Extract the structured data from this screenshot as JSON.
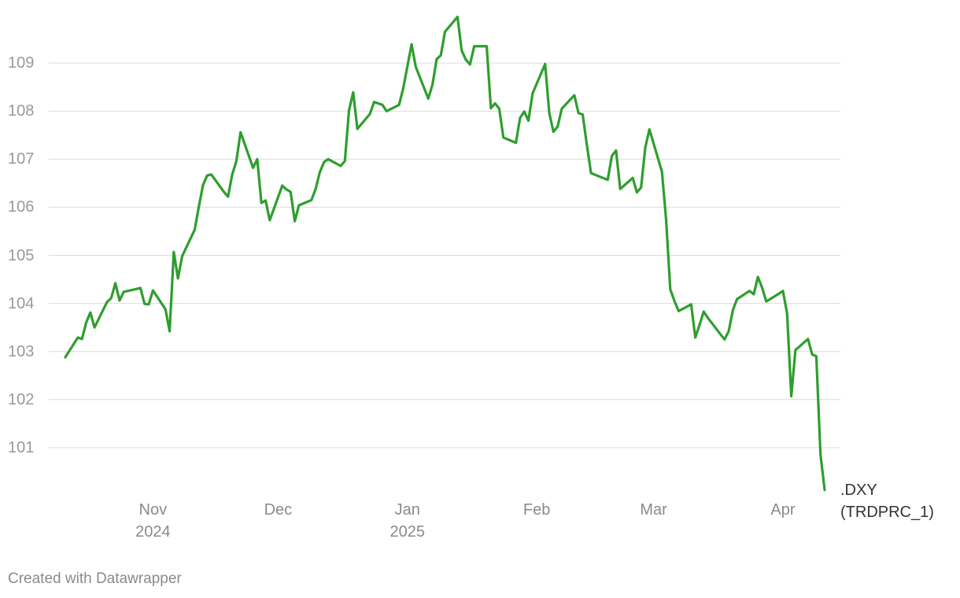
{
  "chart_data": {
    "type": "line",
    "footer": "Created with Datawrapper",
    "ylim": [
      100,
      110
    ],
    "yticks": [
      101,
      102,
      103,
      104,
      105,
      106,
      107,
      108,
      109
    ],
    "grid": true,
    "xlim": [
      "2024-10-11",
      "2025-04-11"
    ],
    "xticks": [
      {
        "value": "2024-11",
        "label": "Nov\n2024"
      },
      {
        "value": "2024-12",
        "label": "Dec"
      },
      {
        "value": "2025-01",
        "label": "Jan\n2025"
      },
      {
        "value": "2025-02",
        "label": "Feb"
      },
      {
        "value": "2025-03",
        "label": "Mar"
      },
      {
        "value": "2025-04",
        "label": "Apr"
      }
    ],
    "x": [
      "2024-10-11",
      "2024-10-14",
      "2024-10-15",
      "2024-10-16",
      "2024-10-17",
      "2024-10-18",
      "2024-10-21",
      "2024-10-22",
      "2024-10-23",
      "2024-10-24",
      "2024-10-25",
      "2024-10-28",
      "2024-10-29",
      "2024-10-30",
      "2024-10-31",
      "2024-11-01",
      "2024-11-04",
      "2024-11-05",
      "2024-11-06",
      "2024-11-07",
      "2024-11-08",
      "2024-11-11",
      "2024-11-12",
      "2024-11-13",
      "2024-11-14",
      "2024-11-15",
      "2024-11-18",
      "2024-11-19",
      "2024-11-20",
      "2024-11-21",
      "2024-11-22",
      "2024-11-25",
      "2024-11-26",
      "2024-11-27",
      "2024-11-28",
      "2024-11-29",
      "2024-12-02",
      "2024-12-03",
      "2024-12-04",
      "2024-12-05",
      "2024-12-06",
      "2024-12-09",
      "2024-12-10",
      "2024-12-11",
      "2024-12-12",
      "2024-12-13",
      "2024-12-16",
      "2024-12-17",
      "2024-12-18",
      "2024-12-19",
      "2024-12-20",
      "2024-12-23",
      "2024-12-24",
      "2024-12-26",
      "2024-12-27",
      "2024-12-30",
      "2024-12-31",
      "2025-01-02",
      "2025-01-03",
      "2025-01-06",
      "2025-01-07",
      "2025-01-08",
      "2025-01-09",
      "2025-01-10",
      "2025-01-13",
      "2025-01-14",
      "2025-01-15",
      "2025-01-16",
      "2025-01-17",
      "2025-01-20",
      "2025-01-21",
      "2025-01-22",
      "2025-01-23",
      "2025-01-24",
      "2025-01-27",
      "2025-01-28",
      "2025-01-29",
      "2025-01-30",
      "2025-01-31",
      "2025-02-03",
      "2025-02-04",
      "2025-02-05",
      "2025-02-06",
      "2025-02-07",
      "2025-02-10",
      "2025-02-11",
      "2025-02-12",
      "2025-02-13",
      "2025-02-14",
      "2025-02-18",
      "2025-02-19",
      "2025-02-20",
      "2025-02-21",
      "2025-02-24",
      "2025-02-25",
      "2025-02-26",
      "2025-02-27",
      "2025-02-28",
      "2025-03-03",
      "2025-03-04",
      "2025-03-05",
      "2025-03-06",
      "2025-03-07",
      "2025-03-10",
      "2025-03-11",
      "2025-03-12",
      "2025-03-13",
      "2025-03-14",
      "2025-03-17",
      "2025-03-18",
      "2025-03-19",
      "2025-03-20",
      "2025-03-21",
      "2025-03-24",
      "2025-03-25",
      "2025-03-26",
      "2025-03-27",
      "2025-03-28",
      "2025-03-31",
      "2025-04-01",
      "2025-04-02",
      "2025-04-03",
      "2025-04-04",
      "2025-04-07",
      "2025-04-08",
      "2025-04-09",
      "2025-04-10",
      "2025-04-11"
    ],
    "series": [
      {
        "name": ".DXY (TRDPRC_1)",
        "color": "#2e9e2e",
        "values": [
          102.88,
          103.29,
          103.26,
          103.6,
          103.81,
          103.5,
          104.03,
          104.11,
          104.42,
          104.06,
          104.24,
          104.3,
          104.32,
          103.99,
          103.98,
          104.27,
          103.88,
          103.42,
          105.07,
          104.52,
          104.98,
          105.53,
          106.01,
          106.46,
          106.66,
          106.68,
          106.32,
          106.22,
          106.68,
          106.96,
          107.56,
          106.82,
          107.0,
          106.09,
          106.14,
          105.73,
          106.45,
          106.37,
          106.32,
          105.71,
          106.04,
          106.15,
          106.38,
          106.73,
          106.94,
          107.0,
          106.86,
          106.96,
          108.02,
          108.39,
          107.63,
          107.94,
          108.19,
          108.13,
          108.0,
          108.13,
          108.48,
          109.39,
          108.92,
          108.26,
          108.55,
          109.08,
          109.16,
          109.65,
          109.96,
          109.26,
          109.07,
          108.97,
          109.35,
          109.35,
          108.06,
          108.16,
          108.05,
          107.45,
          107.34,
          107.86,
          107.99,
          107.8,
          108.37,
          108.98,
          107.96,
          107.57,
          107.68,
          108.05,
          108.33,
          107.96,
          107.93,
          107.3,
          106.71,
          106.57,
          107.07,
          107.18,
          106.38,
          106.61,
          106.31,
          106.41,
          107.24,
          107.62,
          106.74,
          105.74,
          104.29,
          104.05,
          103.84,
          103.98,
          103.29,
          103.55,
          103.83,
          103.7,
          103.36,
          103.25,
          103.42,
          103.86,
          104.09,
          104.26,
          104.19,
          104.55,
          104.33,
          104.04,
          104.2,
          104.26,
          103.79,
          102.07,
          103.03,
          103.26,
          102.94,
          102.9,
          100.86,
          100.12
        ]
      }
    ]
  }
}
